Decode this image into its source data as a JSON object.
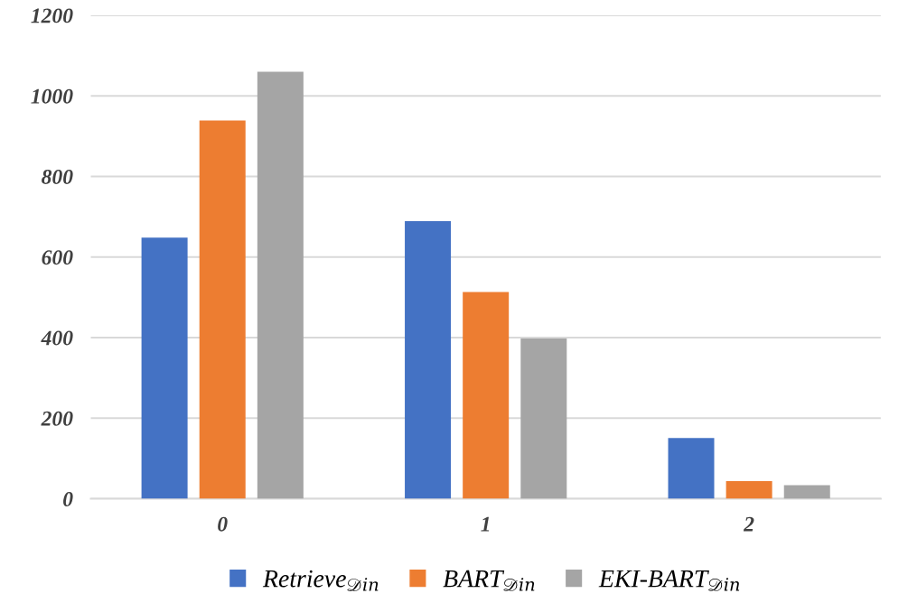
{
  "chart_data": {
    "type": "bar",
    "categories": [
      "0",
      "1",
      "2"
    ],
    "series": [
      {
        "name": "Retrieve$_{𝒟in}$",
        "color": "#4472c4",
        "values": [
          648,
          689,
          151
        ]
      },
      {
        "name": "BART$_{𝒟in}$",
        "color": "#ed7d31",
        "values": [
          939,
          513,
          44
        ]
      },
      {
        "name": "EKI-BART$_{𝒟in}$",
        "color": "#a5a5a5",
        "values": [
          1060,
          398,
          34
        ]
      }
    ],
    "ylim": [
      0,
      1200
    ],
    "yticks": [
      0,
      200,
      400,
      600,
      800,
      1000,
      1200
    ],
    "grid": "y",
    "legend": "bottom"
  }
}
